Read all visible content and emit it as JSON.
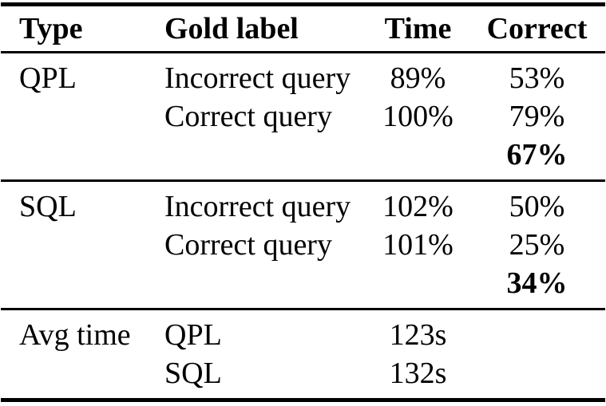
{
  "page": {
    "background": "#ffffff",
    "text_color": "#000000",
    "rule_color": "#000000"
  },
  "table": {
    "columns": {
      "type": "Type",
      "gold_label": "Gold label",
      "time": "Time",
      "correct": "Correct"
    },
    "sections": [
      {
        "name": "QPL",
        "rows": [
          {
            "type": "QPL",
            "gold_label": "Incorrect query",
            "time": "89%",
            "correct": "53%"
          },
          {
            "type": "",
            "gold_label": "Correct query",
            "time": "100%",
            "correct": "79%"
          },
          {
            "type": "",
            "gold_label": "",
            "time": "",
            "correct": "67%"
          }
        ]
      },
      {
        "name": "SQL",
        "rows": [
          {
            "type": "SQL",
            "gold_label": "Incorrect query",
            "time": "102%",
            "correct": "50%"
          },
          {
            "type": "",
            "gold_label": "Correct query",
            "time": "101%",
            "correct": "25%"
          },
          {
            "type": "",
            "gold_label": "",
            "time": "",
            "correct": "34%"
          }
        ]
      },
      {
        "name": "Avg time",
        "rows": [
          {
            "type": "Avg time",
            "gold_label": "QPL",
            "time": "123s",
            "correct": ""
          },
          {
            "type": "",
            "gold_label": "SQL",
            "time": "132s",
            "correct": ""
          }
        ]
      }
    ]
  }
}
